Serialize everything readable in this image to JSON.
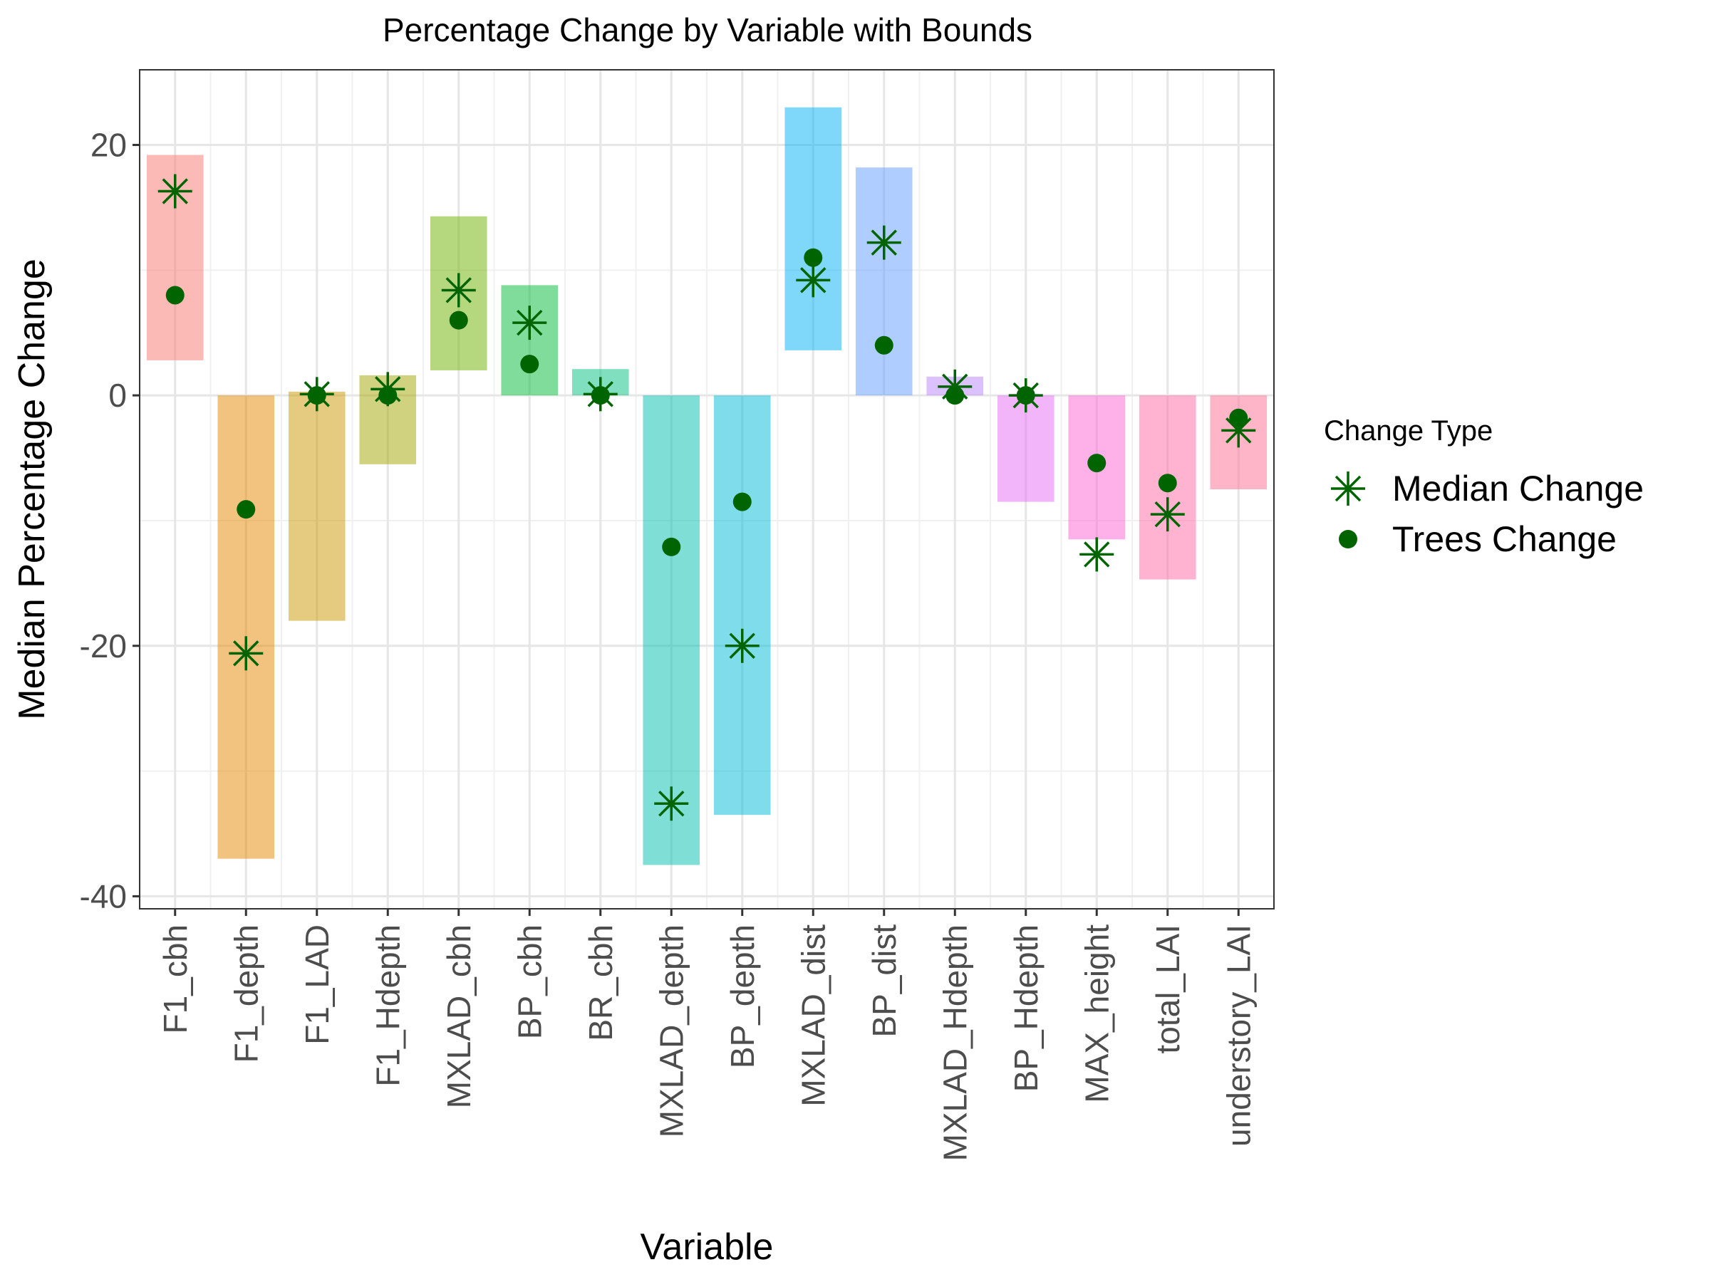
{
  "chart_data": {
    "type": "bar",
    "title": "Percentage Change by Variable with Bounds",
    "xlabel": "Variable",
    "ylabel": "Median Percentage Change",
    "ylim": [
      -41,
      26
    ],
    "yticks": [
      -40,
      -20,
      0,
      20
    ],
    "ytick_labels": [
      "-40",
      "-20",
      "0",
      "20"
    ],
    "grid": true,
    "legend_title": "Change Type",
    "legend_position": "right",
    "legend": [
      {
        "name": "Median Change",
        "marker": "asterisk",
        "color": "#006400"
      },
      {
        "name": "Trees Change",
        "marker": "circle",
        "color": "#006400"
      }
    ],
    "categories": [
      "F1_cbh",
      "F1_depth",
      "F1_LAD",
      "F1_Hdepth",
      "MXLAD_cbh",
      "BP_cbh",
      "BR_cbh",
      "MXLAD_depth",
      "BP_depth",
      "MXLAD_dist",
      "BP_dist",
      "MXLAD_Hdepth",
      "BP_Hdepth",
      "MAX_height",
      "total_LAI",
      "understory_LAI"
    ],
    "bar_colors": [
      "#F8766D",
      "#E58700",
      "#C99800",
      "#A3A500",
      "#6BB100",
      "#00BA38",
      "#00BF7D",
      "#00C0AF",
      "#00BCD8",
      "#00B0F6",
      "#619CFF",
      "#B983FF",
      "#E76BF3",
      "#FD61D1",
      "#FF67A4",
      "#FF6C91"
    ],
    "bar_lower": [
      2.8,
      -37,
      -18,
      -5.5,
      2,
      0,
      0,
      -37.5,
      -33.5,
      3.6,
      0,
      0,
      -8.5,
      -11.5,
      -14.7,
      -7.5
    ],
    "bar_upper": [
      19.2,
      0,
      0.3,
      1.6,
      14.3,
      8.8,
      2.1,
      0,
      0,
      23,
      18.2,
      1.5,
      0,
      0,
      0,
      0
    ],
    "series": [
      {
        "name": "Median Change",
        "values": [
          16.3,
          -20.6,
          0.1,
          0.5,
          8.4,
          5.8,
          0.1,
          -32.6,
          -20,
          9.2,
          12.2,
          0.7,
          0,
          -12.7,
          -9.5,
          -2.8
        ]
      },
      {
        "name": "Trees Change",
        "values": [
          8,
          -9.1,
          0,
          0,
          6,
          2.5,
          0,
          -12.1,
          -8.5,
          11,
          4,
          0,
          0,
          -5.4,
          -7,
          -1.8
        ]
      }
    ]
  }
}
